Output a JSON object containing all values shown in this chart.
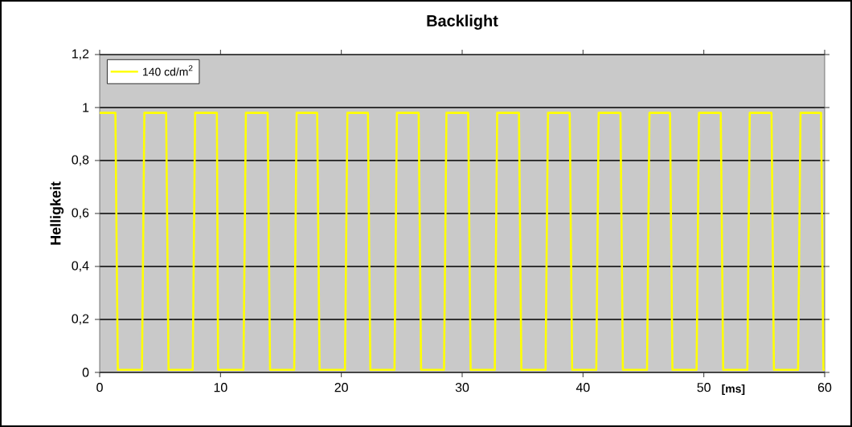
{
  "chart_data": {
    "type": "line",
    "title": "Backlight",
    "xlabel": "[ms]",
    "ylabel": "Helligkeit",
    "xlim": [
      0,
      60
    ],
    "xticks": [
      0,
      10,
      20,
      30,
      40,
      50,
      60
    ],
    "ylim": [
      0,
      1.2
    ],
    "yticks": [
      {
        "value": 0,
        "label": "0"
      },
      {
        "value": 0.2,
        "label": "0,2"
      },
      {
        "value": 0.4,
        "label": "0,4"
      },
      {
        "value": 0.6,
        "label": "0,6"
      },
      {
        "value": 0.8,
        "label": "0,8"
      },
      {
        "value": 1,
        "label": "1"
      },
      {
        "value": 1.2,
        "label": "1,2"
      }
    ],
    "grid": "y",
    "legend": "top left",
    "marker": "none",
    "line_style": "solid",
    "series": [
      {
        "name": "140 cd/m$^{2}$",
        "color": "#ffff00",
        "x": [
          0,
          1.3,
          1.5,
          3.5,
          3.7,
          5.5,
          5.7,
          7.7,
          7.9,
          9.7,
          9.8,
          11.9,
          12.1,
          13.9,
          14.1,
          16.1,
          16.3,
          18.0,
          18.2,
          20.3,
          20.5,
          22.2,
          22.4,
          24.4,
          24.6,
          26.4,
          26.6,
          28.5,
          28.7,
          30.5,
          30.7,
          32.7,
          32.9,
          34.7,
          34.9,
          36.9,
          37.1,
          38.9,
          39.1,
          41.1,
          41.3,
          43.1,
          43.3,
          45.3,
          45.5,
          47.2,
          47.4,
          49.4,
          49.6,
          51.4,
          51.6,
          53.6,
          53.8,
          55.6,
          55.8,
          57.8,
          58.0,
          59.7,
          59.9,
          60
        ],
        "values": [
          0.98,
          0.98,
          0.01,
          0.01,
          0.98,
          0.98,
          0.01,
          0.01,
          0.98,
          0.98,
          0.01,
          0.01,
          0.98,
          0.98,
          0.01,
          0.01,
          0.98,
          0.98,
          0.01,
          0.01,
          0.98,
          0.98,
          0.01,
          0.01,
          0.98,
          0.98,
          0.01,
          0.01,
          0.98,
          0.98,
          0.01,
          0.01,
          0.98,
          0.98,
          0.01,
          0.01,
          0.98,
          0.98,
          0.01,
          0.01,
          0.98,
          0.98,
          0.01,
          0.01,
          0.98,
          0.98,
          0.01,
          0.01,
          0.98,
          0.98,
          0.01,
          0.01,
          0.98,
          0.98,
          0.01,
          0.01,
          0.98,
          0.98,
          0.01,
          0.01
        ]
      }
    ]
  }
}
